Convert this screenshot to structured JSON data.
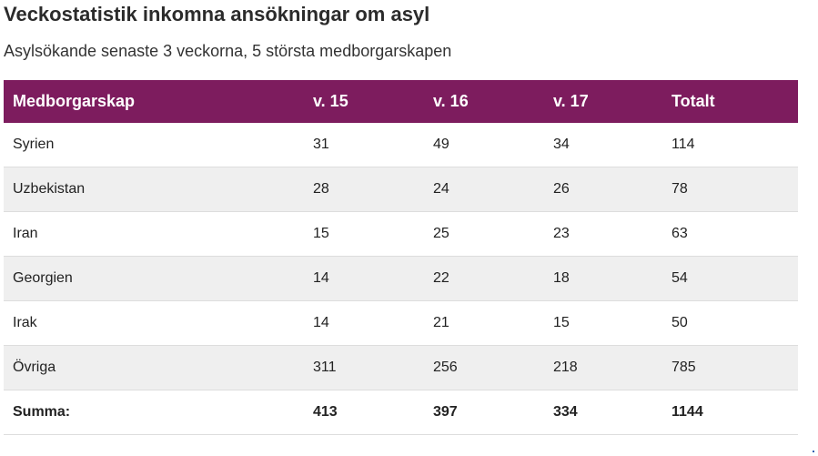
{
  "title": "Veckostatistik inkomna ansökningar om asyl",
  "subtitle": "Asylsökande senaste 3 veckorna, 5 största medborgarskapen",
  "table": {
    "headers": [
      "Medborgarskap",
      "v. 15",
      "v. 16",
      "v. 17",
      "Totalt"
    ],
    "rows": [
      [
        "Syrien",
        "31",
        "49",
        "34",
        "114"
      ],
      [
        "Uzbekistan",
        "28",
        "24",
        "26",
        "78"
      ],
      [
        "Iran",
        "15",
        "25",
        "23",
        "63"
      ],
      [
        "Georgien",
        "14",
        "22",
        "18",
        "54"
      ],
      [
        "Irak",
        "14",
        "21",
        "15",
        "50"
      ],
      [
        "Övriga",
        "311",
        "256",
        "218",
        "785"
      ]
    ],
    "total": [
      "Summa:",
      "413",
      "397",
      "334",
      "1144"
    ]
  },
  "colors": {
    "header_background": "#7d1c5e",
    "header_text": "#ffffff",
    "alt_row_background": "#efefef"
  }
}
